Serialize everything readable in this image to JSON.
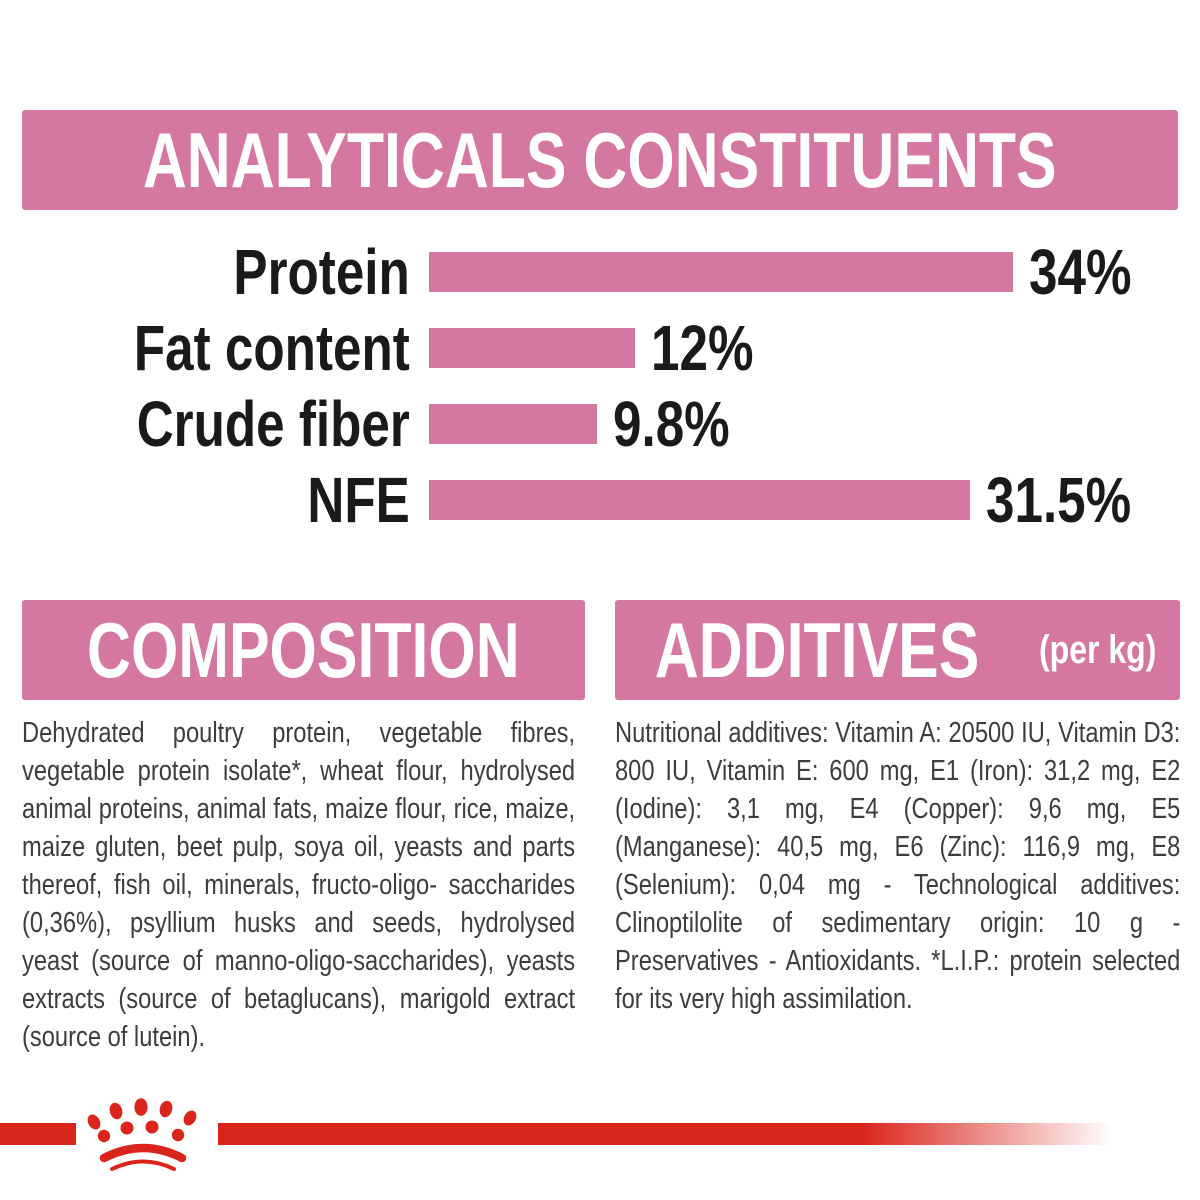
{
  "colors": {
    "banner_pink": "#d477a1",
    "bar_pink": "#d477a1",
    "brand_red": "#da251c",
    "label_black": "#1a1a1a",
    "body_text_gray": "#3d3d3d"
  },
  "header": {
    "title": "ANALYTICALS CONSTITUENTS"
  },
  "chart_data": {
    "type": "bar",
    "orientation": "horizontal",
    "title": "ANALYTICALS CONSTITUENTS",
    "categories": [
      "Protein",
      "Fat content",
      "Crude fiber",
      "NFE"
    ],
    "values": [
      34,
      12,
      9.8,
      31.5
    ],
    "value_labels": [
      "34%",
      "12%",
      "9.8%",
      "31.5%"
    ],
    "xlim": [
      0,
      34
    ],
    "bar_color": "#d477a1",
    "grid": false,
    "legend": false
  },
  "composition": {
    "heading": "COMPOSITION",
    "body": "Dehydrated poultry protein, vegetable fibres, vegetable protein isolate*, wheat flour, hydrolysed animal proteins, animal fats, maize flour, rice, maize, maize gluten, beet pulp, soya oil, yeasts and parts thereof, fish oil, minerals, fructo-oligo- saccharides (0,36%), psyllium husks and seeds, hydrolysed yeast (source of manno-oligo-saccharides), yeasts extracts (source of betaglucans), marigold extract (source of lutein)."
  },
  "additives": {
    "heading": "ADDITIVES",
    "heading_suffix": "(per kg)",
    "body": "Nutritional additives: Vitamin A: 20500 IU, Vitamin D3: 800 IU, Vitamin E: 600 mg, E1 (Iron): 31,2 mg, E2 (Iodine): 3,1 mg, E4 (Copper): 9,6 mg, E5 (Manganese): 40,5 mg, E6 (Zinc): 116,9 mg, E8 (Selenium): 0,04 mg - Technological additives: Clinoptilolite of sedimentary origin: 10 g - Preservatives - Antioxidants. *L.I.P.: protein selected for its very high assimilation."
  },
  "footer": {
    "logo_name": "royal-canin-crown"
  }
}
